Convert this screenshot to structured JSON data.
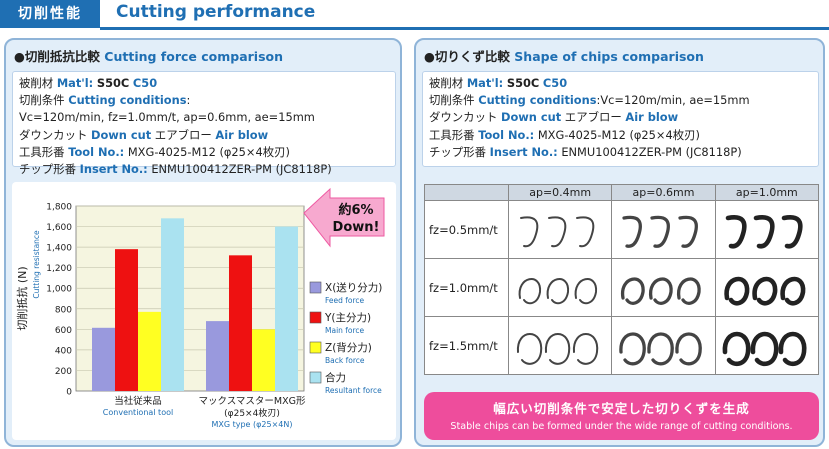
{
  "header": {
    "label": "切削性能",
    "title": "Cutting performance"
  },
  "left_panel": {
    "bullet": "●",
    "title_jp": "切削抵抗比較",
    "title_en": "Cutting force comparison",
    "conditions": {
      "material_jp": "被削材",
      "material_en": "Mat'l:",
      "material_value": "S50C",
      "material_value_en": "C50",
      "cond_jp": "切削条件",
      "cond_en": "Cutting conditions",
      "cond_colon": ":",
      "cond_value": "Vc=120m/min, fz=1.0mm/t, ap=0.6mm, ae=15mm",
      "downcut_jp": "ダウンカット",
      "downcut_en": "Down cut",
      "airblow_jp": "エアブロー",
      "airblow_en": "Air blow",
      "tool_jp": "工具形番",
      "tool_en": "Tool No.:",
      "tool_value": "MXG-4025-M12 (φ25×4枚刃)",
      "insert_jp": "チップ形番",
      "insert_en": "Insert No.:",
      "insert_value": "ENMU100412ZER-PM (JC8118P)"
    }
  },
  "right_panel": {
    "bullet": "●",
    "title_jp": "切りくず比較",
    "title_en": "Shape of chips comparison",
    "conditions": {
      "material_jp": "被削材",
      "material_en": "Mat'l:",
      "material_value": "S50C",
      "material_value_en": "C50",
      "cond_jp": "切削条件",
      "cond_en": "Cutting conditions",
      "cond_colon": ":",
      "cond_value": "Vc=120m/min, ae=15mm",
      "downcut_jp": "ダウンカット",
      "downcut_en": "Down cut",
      "airblow_jp": "エアブロー",
      "airblow_en": "Air blow",
      "tool_jp": "工具形番",
      "tool_en": "Tool No.:",
      "tool_value": "MXG-4025-M12 (φ25×4枚刃)",
      "insert_jp": "チップ形番",
      "insert_en": "Insert No.:",
      "insert_value": "ENMU100412ZER-PM (JC8118P)"
    },
    "chips_table": {
      "columns": [
        "ap=0.4mm",
        "ap=0.6mm",
        "ap=1.0mm"
      ],
      "rows": [
        "fz=0.5mm/t",
        "fz=1.0mm/t",
        "fz=1.5mm/t"
      ]
    },
    "banner": {
      "jp": "幅広い切削条件で安定した切りくずを生成",
      "en": "Stable chips can be formed under the wide range of cutting conditions."
    }
  },
  "chart_data": {
    "type": "bar",
    "ylabel_jp": "切削抵抗 (N)",
    "ylabel_en": "Cutting resistance",
    "ylim": [
      0,
      1800
    ],
    "yticks": [
      "0",
      "200",
      "400",
      "600",
      "800",
      "1,000",
      "1,200",
      "1,400",
      "1,600",
      "1,800"
    ],
    "grid": true,
    "categories": [
      {
        "jp": "当社従来品",
        "en": "Conventional tool",
        "en2": ""
      },
      {
        "jp": "マックスマスターMXG形",
        "jp2": "(φ25×4枚刃)",
        "en": "MXG type (φ25×4N)"
      }
    ],
    "series": [
      {
        "name_jp": "X(送り分力)",
        "name_en": "Feed force",
        "color": "#9999dd",
        "values": [
          615,
          680
        ]
      },
      {
        "name_jp": "Y(主分力)",
        "name_en": "Main force",
        "color": "#ee1111",
        "values": [
          1380,
          1320
        ]
      },
      {
        "name_jp": "Z(背分力)",
        "name_en": "Back force",
        "color": "#ffff22",
        "values": [
          770,
          600
        ]
      },
      {
        "name_jp": "合力",
        "name_en": "Resultant force",
        "color": "#aae2f0",
        "values": [
          1680,
          1600
        ]
      }
    ],
    "annotation": {
      "line1": "約6%",
      "line2": "Down!"
    },
    "legend_position": "right"
  }
}
